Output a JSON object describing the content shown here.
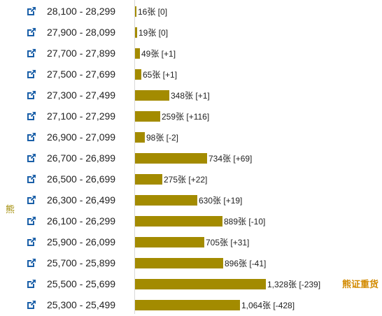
{
  "side_label": "熊",
  "right_label": "熊证重货",
  "chart_data": {
    "type": "bar",
    "orientation": "horizontal",
    "categories": [
      "28,100 - 28,299",
      "27,900 - 28,099",
      "27,700 - 27,899",
      "27,500 - 27,699",
      "27,300 - 27,499",
      "27,100 - 27,299",
      "26,900 - 27,099",
      "26,700 - 26,899",
      "26,500 - 26,699",
      "26,300 - 26,499",
      "26,100 - 26,299",
      "25,900 - 26,099",
      "25,700 - 25,899",
      "25,500 - 25,699",
      "25,300 - 25,499"
    ],
    "values": [
      16,
      19,
      49,
      65,
      348,
      259,
      98,
      734,
      275,
      630,
      889,
      705,
      896,
      1328,
      1064
    ],
    "labels": [
      "16张 [0]",
      "19张 [0]",
      "49张 [+1]",
      "65张 [+1]",
      "348张 [+1]",
      "259张 [+116]",
      "98张 [-2]",
      "734张 [+69]",
      "275张 [+22]",
      "630张 [+19]",
      "889张 [-10]",
      "705张 [+31]",
      "896张 [-41]",
      "1,328张 [-239]",
      "1,064张 [-428]"
    ],
    "title": "",
    "xlabel": "",
    "ylabel": "",
    "xlim": [
      0,
      1328
    ],
    "grid": false,
    "colors": {
      "bar": "#a38b00",
      "icon": "#1a5fa8"
    }
  }
}
